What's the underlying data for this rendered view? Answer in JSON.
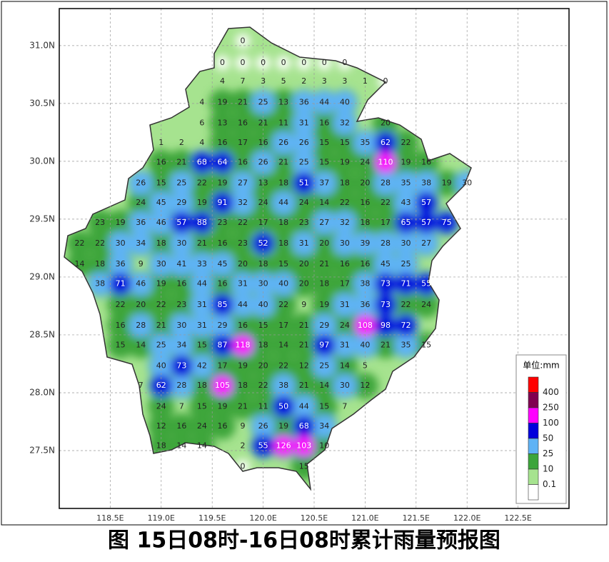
{
  "chart_data": {
    "type": "station-map",
    "title": "图 15日08时-16日08时累计雨量预报图",
    "xlim": [
      118,
      123
    ],
    "ylim": [
      27,
      31.32
    ],
    "xticks": [
      {
        "value": 118.5,
        "label": "118.5E"
      },
      {
        "value": 119,
        "label": "119.0E"
      },
      {
        "value": 119.5,
        "label": "119.5E"
      },
      {
        "value": 120,
        "label": "120.0E"
      },
      {
        "value": 120.5,
        "label": "120.5E"
      },
      {
        "value": 121,
        "label": "121.0E"
      },
      {
        "value": 121.5,
        "label": "121.5E"
      },
      {
        "value": 122,
        "label": "122.0E"
      },
      {
        "value": 122.5,
        "label": "122.5E"
      }
    ],
    "yticks": [
      {
        "value": 27.5,
        "label": "27.5N"
      },
      {
        "value": 28,
        "label": "28.0N"
      },
      {
        "value": 28.5,
        "label": "28.5N"
      },
      {
        "value": 29,
        "label": "29.0N"
      },
      {
        "value": 29.5,
        "label": "29.5N"
      },
      {
        "value": 30,
        "label": "30.0N"
      },
      {
        "value": 30.5,
        "label": "30.5N"
      },
      {
        "value": 31,
        "label": "31.0N"
      }
    ],
    "grid": true,
    "legend": {
      "title": "单位:mm",
      "levels": [
        0.1,
        10,
        25,
        50,
        100,
        250,
        400
      ],
      "colors": [
        "#ffffff",
        "#a6e38f",
        "#3ca53a",
        "#5fb3f5",
        "#0000dc",
        "#ff00ff",
        "#800050",
        "#ff0000"
      ]
    },
    "stations": [
      {
        "lat": 31.04,
        "lons": [
          119.8
        ],
        "values": [
          0
        ]
      },
      {
        "lat": 30.85,
        "lons": [
          119.6,
          119.8,
          120.0,
          120.2,
          120.4,
          120.6,
          120.8
        ],
        "values": [
          0,
          0,
          0,
          0,
          0,
          0,
          0
        ]
      },
      {
        "lat": 30.69,
        "lons": [
          119.6,
          119.8,
          120.0,
          120.2,
          120.4,
          120.6,
          120.8,
          121.0,
          121.2
        ],
        "values": [
          4,
          7,
          3,
          5,
          2,
          3,
          3,
          1,
          0
        ]
      },
      {
        "lat": 30.51,
        "lons": [
          119.4,
          119.6,
          119.8,
          120.0,
          120.2,
          120.4,
          120.6,
          120.8
        ],
        "values": [
          4,
          19,
          21,
          25,
          13,
          36,
          44,
          40
        ]
      },
      {
        "lat": 30.33,
        "lons": [
          119.4,
          119.6,
          119.8,
          120.0,
          120.2,
          120.4,
          120.6,
          120.8,
          121.2
        ],
        "values": [
          6,
          13,
          16,
          21,
          11,
          31,
          16,
          32,
          20
        ]
      },
      {
        "lat": 30.16,
        "lons": [
          119.0,
          119.2,
          119.4,
          119.6,
          119.8,
          120.0,
          120.2,
          120.4,
          120.6,
          120.8,
          121.0,
          121.2,
          121.4
        ],
        "values": [
          1,
          2,
          4,
          16,
          17,
          16,
          26,
          26,
          15,
          15,
          35,
          62,
          22
        ]
      },
      {
        "lat": 29.99,
        "lons": [
          119.0,
          119.2,
          119.4,
          119.6,
          119.8,
          120.0,
          120.2,
          120.4,
          120.6,
          120.8,
          121.0,
          121.2,
          121.4,
          121.6
        ],
        "values": [
          16,
          21,
          68,
          64,
          16,
          26,
          21,
          25,
          15,
          19,
          24,
          110,
          19,
          16
        ]
      },
      {
        "lat": 29.81,
        "lons": [
          118.8,
          119.0,
          119.2,
          119.4,
          119.6,
          119.8,
          120.0,
          120.2,
          120.4,
          120.6,
          120.8,
          121.0,
          121.2,
          121.4,
          121.6,
          121.8,
          122.0
        ],
        "values": [
          26,
          15,
          25,
          22,
          19,
          27,
          13,
          18,
          51,
          37,
          18,
          20,
          28,
          35,
          38,
          19,
          30
        ]
      },
      {
        "lat": 29.64,
        "lons": [
          118.8,
          119.0,
          119.2,
          119.4,
          119.6,
          119.8,
          120.0,
          120.2,
          120.4,
          120.6,
          120.8,
          121.0,
          121.2,
          121.4,
          121.6
        ],
        "values": [
          24,
          45,
          29,
          19,
          91,
          32,
          24,
          44,
          24,
          14,
          22,
          16,
          22,
          43,
          57
        ]
      },
      {
        "lat": 29.47,
        "lons": [
          118.4,
          118.6,
          118.8,
          119.0,
          119.2,
          119.4,
          119.6,
          119.8,
          120.0,
          120.2,
          120.4,
          120.6,
          120.8,
          121.0,
          121.2,
          121.4,
          121.6,
          121.8
        ],
        "values": [
          23,
          19,
          36,
          46,
          57,
          88,
          23,
          22,
          17,
          18,
          23,
          27,
          32,
          18,
          17,
          65,
          57,
          75
        ]
      },
      {
        "lat": 29.29,
        "lons": [
          118.2,
          118.4,
          118.6,
          118.8,
          119.0,
          119.2,
          119.4,
          119.6,
          119.8,
          120.0,
          120.2,
          120.4,
          120.6,
          120.8,
          121.0,
          121.2,
          121.4,
          121.6
        ],
        "values": [
          22,
          22,
          30,
          34,
          18,
          30,
          21,
          16,
          23,
          52,
          18,
          31,
          20,
          30,
          39,
          28,
          30,
          27
        ]
      },
      {
        "lat": 29.11,
        "lons": [
          118.2,
          118.4,
          118.6,
          118.8,
          119.0,
          119.2,
          119.4,
          119.6,
          119.8,
          120.0,
          120.2,
          120.4,
          120.6,
          120.8,
          121.0,
          121.2,
          121.4
        ],
        "values": [
          14,
          18,
          36,
          9,
          30,
          41,
          33,
          45,
          20,
          18,
          15,
          20,
          21,
          16,
          16,
          45,
          25
        ]
      },
      {
        "lat": 28.94,
        "lons": [
          118.4,
          118.6,
          118.8,
          119.0,
          119.2,
          119.4,
          119.6,
          119.8,
          120.0,
          120.2,
          120.4,
          120.6,
          120.8,
          121.0,
          121.2,
          121.4,
          121.6
        ],
        "values": [
          38,
          71,
          46,
          19,
          16,
          44,
          16,
          31,
          30,
          40,
          20,
          18,
          17,
          38,
          73,
          71,
          55
        ]
      },
      {
        "lat": 28.76,
        "lons": [
          118.6,
          118.8,
          119.0,
          119.2,
          119.4,
          119.6,
          119.8,
          120.0,
          120.2,
          120.4,
          120.6,
          120.8,
          121.0,
          121.2,
          121.4,
          121.6
        ],
        "values": [
          22,
          20,
          22,
          23,
          31,
          85,
          44,
          40,
          22,
          9,
          19,
          31,
          36,
          73,
          22,
          24
        ]
      },
      {
        "lat": 28.58,
        "lons": [
          118.6,
          118.8,
          119.0,
          119.2,
          119.4,
          119.6,
          119.8,
          120.0,
          120.2,
          120.4,
          120.6,
          120.8,
          121.0,
          121.2,
          121.4
        ],
        "values": [
          16,
          28,
          21,
          30,
          31,
          29,
          16,
          15,
          17,
          21,
          29,
          24,
          108,
          98,
          72
        ]
      },
      {
        "lat": 28.41,
        "lons": [
          118.6,
          118.8,
          119.0,
          119.2,
          119.4,
          119.6,
          119.8,
          120.0,
          120.2,
          120.4,
          120.6,
          120.8,
          121.0,
          121.2,
          121.4,
          121.6
        ],
        "values": [
          15,
          14,
          25,
          34,
          15,
          87,
          118,
          18,
          14,
          21,
          97,
          31,
          40,
          21,
          35,
          15
        ]
      },
      {
        "lat": 28.23,
        "lons": [
          119.0,
          119.2,
          119.4,
          119.6,
          119.8,
          120.0,
          120.2,
          120.4,
          120.6,
          120.8,
          121.0
        ],
        "values": [
          40,
          73,
          42,
          17,
          19,
          20,
          22,
          12,
          25,
          14,
          5
        ]
      },
      {
        "lat": 28.06,
        "lons": [
          118.8,
          119.0,
          119.2,
          119.4,
          119.6,
          119.8,
          120.0,
          120.2,
          120.4,
          120.6,
          120.8,
          121.0
        ],
        "values": [
          7,
          62,
          28,
          18,
          105,
          18,
          22,
          38,
          21,
          14,
          30,
          12
        ]
      },
      {
        "lat": 27.88,
        "lons": [
          119.0,
          119.2,
          119.4,
          119.6,
          119.8,
          120.0,
          120.2,
          120.4,
          120.6,
          120.8
        ],
        "values": [
          24,
          7,
          15,
          19,
          21,
          11,
          50,
          44,
          15,
          7
        ]
      },
      {
        "lat": 27.71,
        "lons": [
          119.0,
          119.2,
          119.4,
          119.6,
          119.8,
          120.0,
          120.2,
          120.4,
          120.6
        ],
        "values": [
          12,
          16,
          24,
          16,
          9,
          26,
          19,
          68,
          34
        ]
      },
      {
        "lat": 27.54,
        "lons": [
          119.0,
          119.2,
          119.4,
          119.8,
          120.0,
          120.2,
          120.4,
          120.6
        ],
        "values": [
          18,
          14,
          14,
          2,
          55,
          126,
          103,
          10
        ]
      },
      {
        "lat": 27.36,
        "lons": [
          119.8,
          120.4
        ],
        "values": [
          0,
          15
        ]
      }
    ]
  }
}
